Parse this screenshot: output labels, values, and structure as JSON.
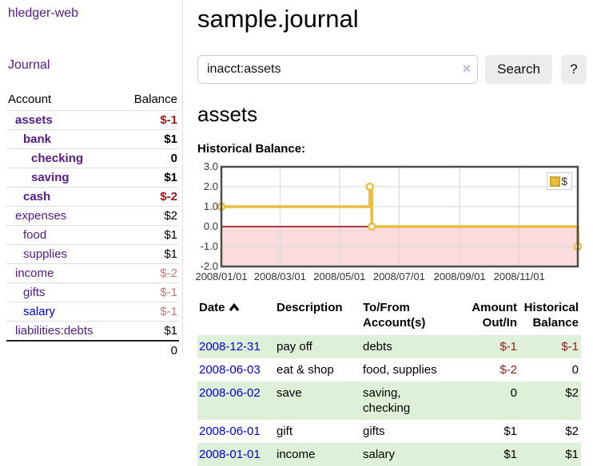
{
  "app": {
    "brand": "hledger-web",
    "nav_journal": "Journal"
  },
  "sidebar": {
    "header": {
      "account": "Account",
      "balance": "Balance"
    },
    "accounts": [
      {
        "name": "assets",
        "indent": 0,
        "bold": true,
        "link": "purple",
        "balance": "$-1",
        "neg": "strong"
      },
      {
        "name": "bank",
        "indent": 1,
        "bold": true,
        "link": "purple",
        "balance": "$1",
        "neg": null
      },
      {
        "name": "checking",
        "indent": 2,
        "bold": true,
        "link": "purple",
        "balance": "0",
        "neg": null
      },
      {
        "name": "saving",
        "indent": 2,
        "bold": true,
        "link": "purple",
        "balance": "$1",
        "neg": null
      },
      {
        "name": "cash",
        "indent": 1,
        "bold": true,
        "link": "purple",
        "balance": "$-2",
        "neg": "strong"
      },
      {
        "name": "expenses",
        "indent": 0,
        "bold": false,
        "link": "purple",
        "balance": "$2",
        "neg": null
      },
      {
        "name": "food",
        "indent": 1,
        "bold": false,
        "link": "purple",
        "balance": "$1",
        "neg": null
      },
      {
        "name": "supplies",
        "indent": 1,
        "bold": false,
        "link": "purple",
        "balance": "$1",
        "neg": null
      },
      {
        "name": "income",
        "indent": 0,
        "bold": false,
        "link": "purple",
        "balance": "$-2",
        "neg": "soft"
      },
      {
        "name": "gifts",
        "indent": 1,
        "bold": false,
        "link": "purple",
        "balance": "$-1",
        "neg": "soft"
      },
      {
        "name": "salary",
        "indent": 1,
        "bold": false,
        "link": "blue",
        "balance": "$-1",
        "neg": "soft"
      },
      {
        "name": "liabilities:debts",
        "indent": 0,
        "bold": false,
        "link": "purple",
        "balance": "$1",
        "neg": null
      }
    ],
    "total": "0"
  },
  "main": {
    "title": "sample.journal",
    "search": {
      "value": "inacct:assets",
      "clear": "×",
      "button": "Search",
      "help": "?"
    },
    "account_heading": "assets",
    "chart_label": "Historical Balance:"
  },
  "chart_data": {
    "type": "line",
    "step": true,
    "title": "Historical Balance:",
    "series": [
      {
        "name": "$",
        "color": "#e9bd3f",
        "points": [
          [
            "2008-01-01",
            1.0
          ],
          [
            "2008-06-01",
            2.0
          ],
          [
            "2008-06-03",
            0.0
          ],
          [
            "2008-12-31",
            -1.0
          ]
        ]
      }
    ],
    "x_ticks": [
      "2008/01/01",
      "2008/03/01",
      "2008/05/01",
      "2008/07/01",
      "2008/09/01",
      "2008/11/01"
    ],
    "y_ticks": [
      "3.0",
      "2.0",
      "1.0",
      "0.0",
      "-1.0",
      "-2.0"
    ],
    "ylim": [
      -2,
      3
    ],
    "xlim": [
      "2008-01-01",
      "2008-12-31"
    ],
    "grid": true,
    "negative_region_color": "#fbdcdc",
    "zero_line_color": "#8b0000",
    "legend": {
      "label": "$",
      "position": "top-right"
    }
  },
  "register": {
    "headers": {
      "date": "Date",
      "description": "Description",
      "accounts": "To/From\nAccount(s)",
      "amount": "Amount\nOut/In",
      "balance": "Historical\nBalance"
    },
    "rows": [
      {
        "date": "2008-12-31",
        "description": "pay off",
        "accounts": "debts",
        "amount": "$-1",
        "amount_neg": true,
        "balance": "$-1",
        "balance_neg": true,
        "stripe": true
      },
      {
        "date": "2008-06-03",
        "description": "eat & shop",
        "accounts": "food, supplies",
        "amount": "$-2",
        "amount_neg": true,
        "balance": "0",
        "balance_neg": false,
        "stripe": false
      },
      {
        "date": "2008-06-02",
        "description": "save",
        "accounts": "saving,\nchecking",
        "amount": "0",
        "amount_neg": false,
        "balance": "$2",
        "balance_neg": false,
        "stripe": true
      },
      {
        "date": "2008-06-01",
        "description": "gift",
        "accounts": "gifts",
        "amount": "$1",
        "amount_neg": false,
        "balance": "$2",
        "balance_neg": false,
        "stripe": false
      },
      {
        "date": "2008-01-01",
        "description": "income",
        "accounts": "salary",
        "amount": "$1",
        "amount_neg": false,
        "balance": "$1",
        "balance_neg": false,
        "stripe": true
      }
    ]
  }
}
